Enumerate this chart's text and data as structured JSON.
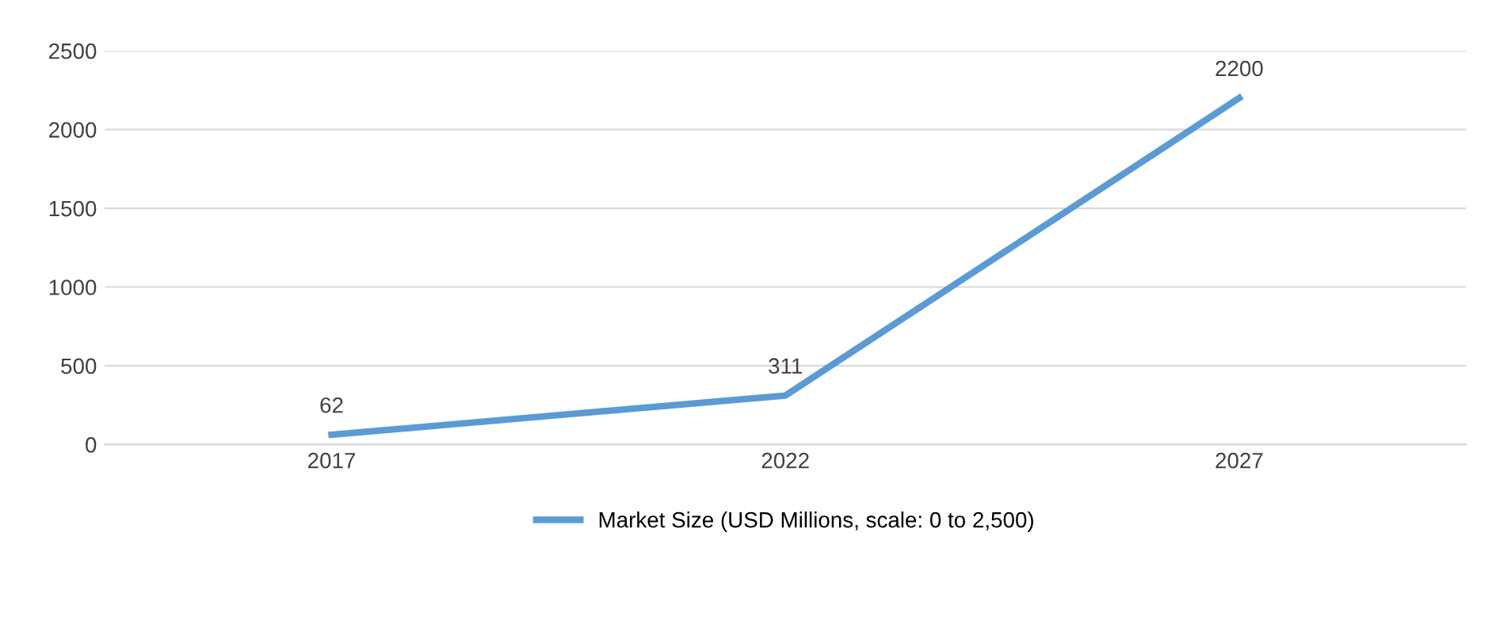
{
  "chart_data": {
    "type": "line",
    "categories": [
      "2017",
      "2022",
      "2027"
    ],
    "series": [
      {
        "name": "Market Size (USD Millions, scale: 0 to 2,500)",
        "color": "#5b9bd5",
        "values": [
          62,
          311,
          2200
        ]
      }
    ],
    "ylim": [
      0,
      2500
    ],
    "yticks": [
      0,
      500,
      1000,
      1500,
      2000,
      2500
    ],
    "grid": "y",
    "legend": "bottom",
    "data_labels": true,
    "marker": "none",
    "line_style": "solid"
  }
}
